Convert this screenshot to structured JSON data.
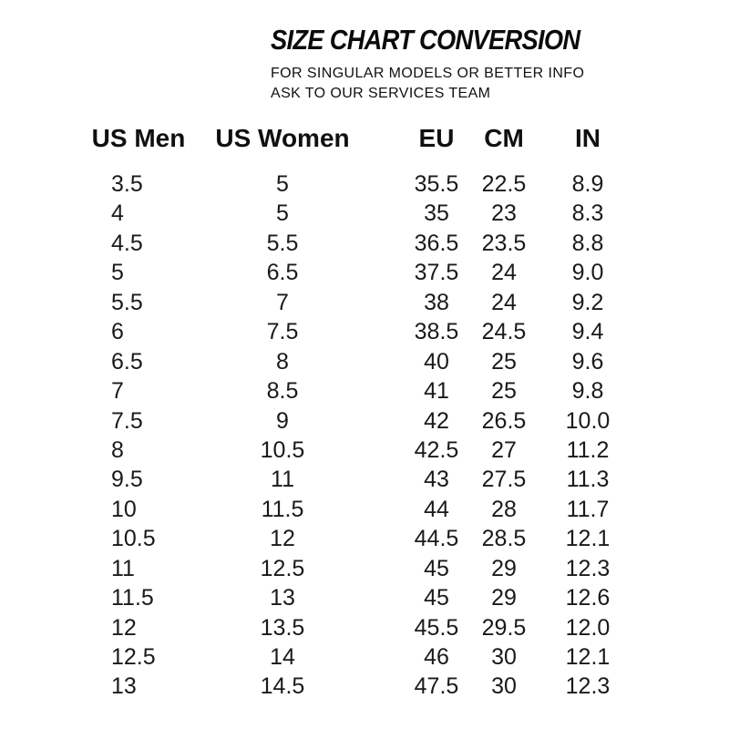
{
  "header": {
    "title": "SIZE CHART CONVERSION",
    "subtitle_line1": "FOR SINGULAR MODELS OR BETTER INFO",
    "subtitle_line2": "ASK TO OUR SERVICES TEAM"
  },
  "chart_data": {
    "type": "table",
    "title": "SIZE CHART CONVERSION",
    "columns": [
      "US Men",
      "US Women",
      "EU",
      "CM",
      "IN"
    ],
    "rows": [
      [
        "3.5",
        "5",
        "35.5",
        "22.5",
        "8.9"
      ],
      [
        "4",
        "5",
        "35",
        "23",
        "8.3"
      ],
      [
        "4.5",
        "5.5",
        "36.5",
        "23.5",
        "8.8"
      ],
      [
        "5",
        "6.5",
        "37.5",
        "24",
        "9.0"
      ],
      [
        "5.5",
        "7",
        "38",
        "24",
        "9.2"
      ],
      [
        "6",
        "7.5",
        "38.5",
        "24.5",
        "9.4"
      ],
      [
        "6.5",
        "8",
        "40",
        "25",
        "9.6"
      ],
      [
        "7",
        "8.5",
        "41",
        "25",
        "9.8"
      ],
      [
        "7.5",
        "9",
        "42",
        "26.5",
        "10.0"
      ],
      [
        "8",
        "10.5",
        "42.5",
        "27",
        "11.2"
      ],
      [
        "9.5",
        "11",
        "43",
        "27.5",
        "11.3"
      ],
      [
        "10",
        "11.5",
        "44",
        "28",
        "11.7"
      ],
      [
        "10.5",
        "12",
        "44.5",
        "28.5",
        "12.1"
      ],
      [
        "11",
        "12.5",
        "45",
        "29",
        "12.3"
      ],
      [
        "11.5",
        "13",
        "45",
        "29",
        "12.6"
      ],
      [
        "12",
        "13.5",
        "45.5",
        "29.5",
        "12.0"
      ],
      [
        "12.5",
        "14",
        "46",
        "30",
        "12.1"
      ],
      [
        "13",
        "14.5",
        "47.5",
        "30",
        "12.3"
      ]
    ]
  },
  "colors": {
    "background": "#ffffff",
    "title_text": "#0b0b0b",
    "body_text": "#1a1a1a"
  }
}
